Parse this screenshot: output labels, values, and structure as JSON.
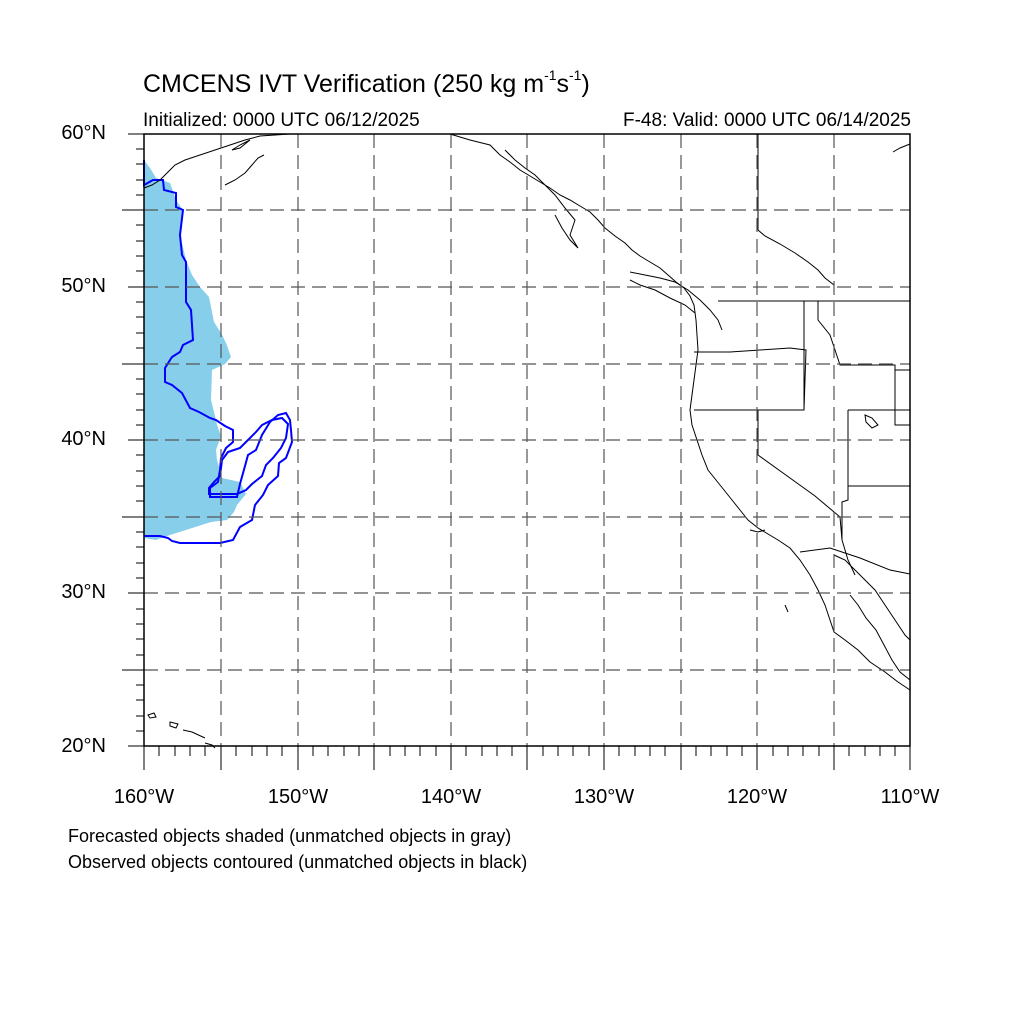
{
  "title": {
    "main": "CMCENS IVT Verification (250 kg m",
    "exp1": "-1",
    "mid": "s",
    "exp2": "-1",
    "end": ")"
  },
  "initialized": "Initialized: 0000 UTC 06/12/2025",
  "valid": "F-48: Valid: 0000 UTC 06/14/2025",
  "lat_labels": [
    "60°N",
    "50°N",
    "40°N",
    "30°N",
    "20°N"
  ],
  "lon_labels": [
    "160°W",
    "150°W",
    "140°W",
    "130°W",
    "120°W",
    "110°W"
  ],
  "notes": {
    "forecast": "Forecasted objects shaded (unmatched objects in gray)",
    "observed": "Observed objects contoured (unmatched objects in black)"
  },
  "colors": {
    "forecast_fill": "#87ceeb",
    "observed_contour": "#0000ff",
    "map_lines": "#000000"
  },
  "map": {
    "projection": "cylindrical equidistant",
    "lon_range": [
      -160,
      -110
    ],
    "lat_range": [
      20,
      60
    ],
    "grid_spacing_deg": 5,
    "grid_style": "dashed"
  }
}
